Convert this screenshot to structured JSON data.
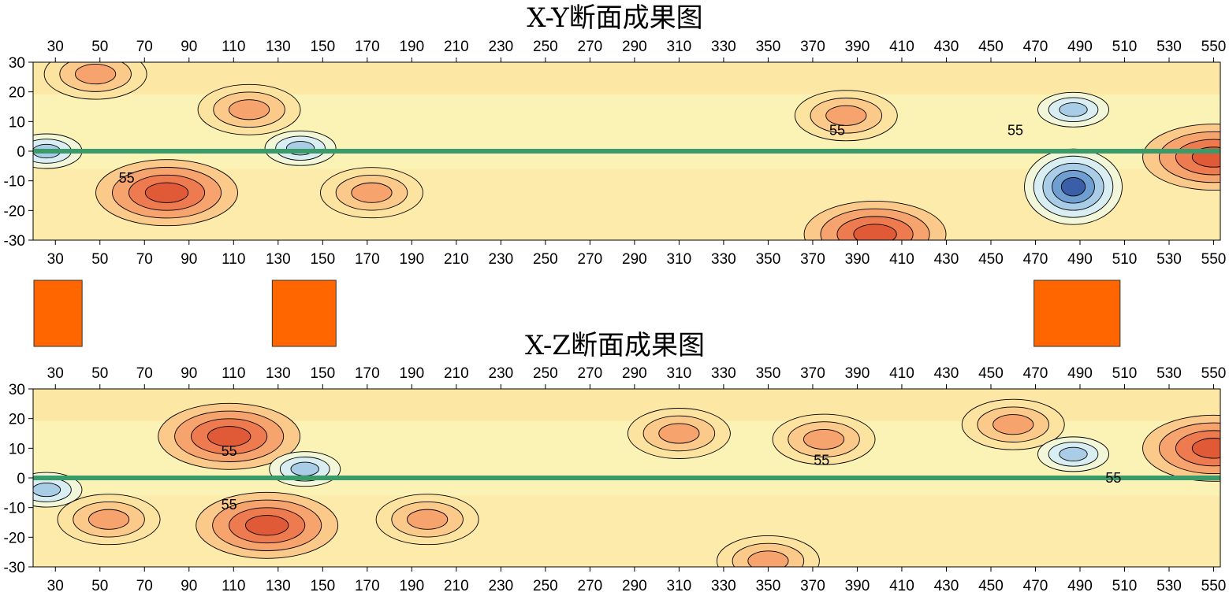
{
  "chart_data": [
    {
      "type": "heatmap",
      "title": "X-Y断面成果图",
      "xlabel": "",
      "ylabel": "",
      "xlim": [
        20,
        553
      ],
      "ylim": [
        -30,
        30
      ],
      "x_ticks": [
        30,
        50,
        70,
        90,
        110,
        130,
        150,
        170,
        190,
        210,
        230,
        250,
        270,
        290,
        310,
        330,
        350,
        370,
        390,
        410,
        430,
        450,
        470,
        490,
        510,
        530,
        550
      ],
      "y_ticks": [
        30,
        20,
        10,
        0,
        -10,
        -20,
        -30
      ],
      "contour_labels": [
        {
          "text": "55",
          "x": 62,
          "y": -9
        },
        {
          "text": "55",
          "x": 381,
          "y": 7
        },
        {
          "text": "55",
          "x": 461,
          "y": 7
        }
      ],
      "baseline_y": 0,
      "baseline_color": "#3a9a6a",
      "anomalies_high": [
        {
          "x": 80,
          "y": -14,
          "level": "high"
        },
        {
          "x": 172,
          "y": -14,
          "level": "mid"
        },
        {
          "x": 398,
          "y": -28,
          "level": "high"
        },
        {
          "x": 550,
          "y": -2,
          "level": "high"
        },
        {
          "x": 117,
          "y": 14,
          "level": "mid"
        },
        {
          "x": 385,
          "y": 12,
          "level": "mid"
        },
        {
          "x": 48,
          "y": 26,
          "level": "mid"
        }
      ],
      "anomalies_low": [
        {
          "x": 487,
          "y": -12,
          "level": "very-low"
        },
        {
          "x": 487,
          "y": 14,
          "level": "low"
        },
        {
          "x": 26,
          "y": 0,
          "level": "low"
        },
        {
          "x": 140,
          "y": 1,
          "level": "low"
        }
      ]
    },
    {
      "type": "heatmap",
      "title": "X-Z断面成果图",
      "xlabel": "",
      "ylabel": "",
      "xlim": [
        20,
        553
      ],
      "ylim": [
        -30,
        30
      ],
      "x_ticks": [
        30,
        50,
        70,
        90,
        110,
        130,
        150,
        170,
        190,
        210,
        230,
        250,
        270,
        290,
        310,
        330,
        350,
        370,
        390,
        410,
        430,
        450,
        470,
        490,
        510,
        530,
        550
      ],
      "y_ticks": [
        30,
        20,
        10,
        0,
        -10,
        -20,
        -30
      ],
      "contour_labels": [
        {
          "text": "55",
          "x": 108,
          "y": 9
        },
        {
          "text": "55",
          "x": 374,
          "y": 6
        },
        {
          "text": "55",
          "x": 505,
          "y": 0
        },
        {
          "text": "55",
          "x": 108,
          "y": -9
        }
      ],
      "baseline_y": 0,
      "baseline_color": "#3a9a6a",
      "anomalies_high": [
        {
          "x": 108,
          "y": 14,
          "level": "high"
        },
        {
          "x": 125,
          "y": -16,
          "level": "high"
        },
        {
          "x": 54,
          "y": -14,
          "level": "mid"
        },
        {
          "x": 197,
          "y": -14,
          "level": "mid"
        },
        {
          "x": 310,
          "y": 15,
          "level": "mid"
        },
        {
          "x": 375,
          "y": 13,
          "level": "mid"
        },
        {
          "x": 550,
          "y": 10,
          "level": "high"
        },
        {
          "x": 460,
          "y": 18,
          "level": "mid"
        },
        {
          "x": 350,
          "y": -28,
          "level": "mid"
        }
      ],
      "anomalies_low": [
        {
          "x": 487,
          "y": 8,
          "level": "low"
        },
        {
          "x": 26,
          "y": -4,
          "level": "low"
        },
        {
          "x": 142,
          "y": 3,
          "level": "low"
        }
      ]
    }
  ],
  "markers": {
    "x_ranges": [
      [
        20,
        42
      ],
      [
        127,
        156
      ],
      [
        469,
        508
      ]
    ],
    "color": "#ff6600"
  },
  "colors": {
    "palette": [
      "#3a5fa8",
      "#6f9fd0",
      "#a9cde6",
      "#d9eef2",
      "#f2f7d9",
      "#fbf3b5",
      "#fde3a0",
      "#fbc98a",
      "#f6a36e",
      "#ee7a4f",
      "#e05a37"
    ]
  }
}
